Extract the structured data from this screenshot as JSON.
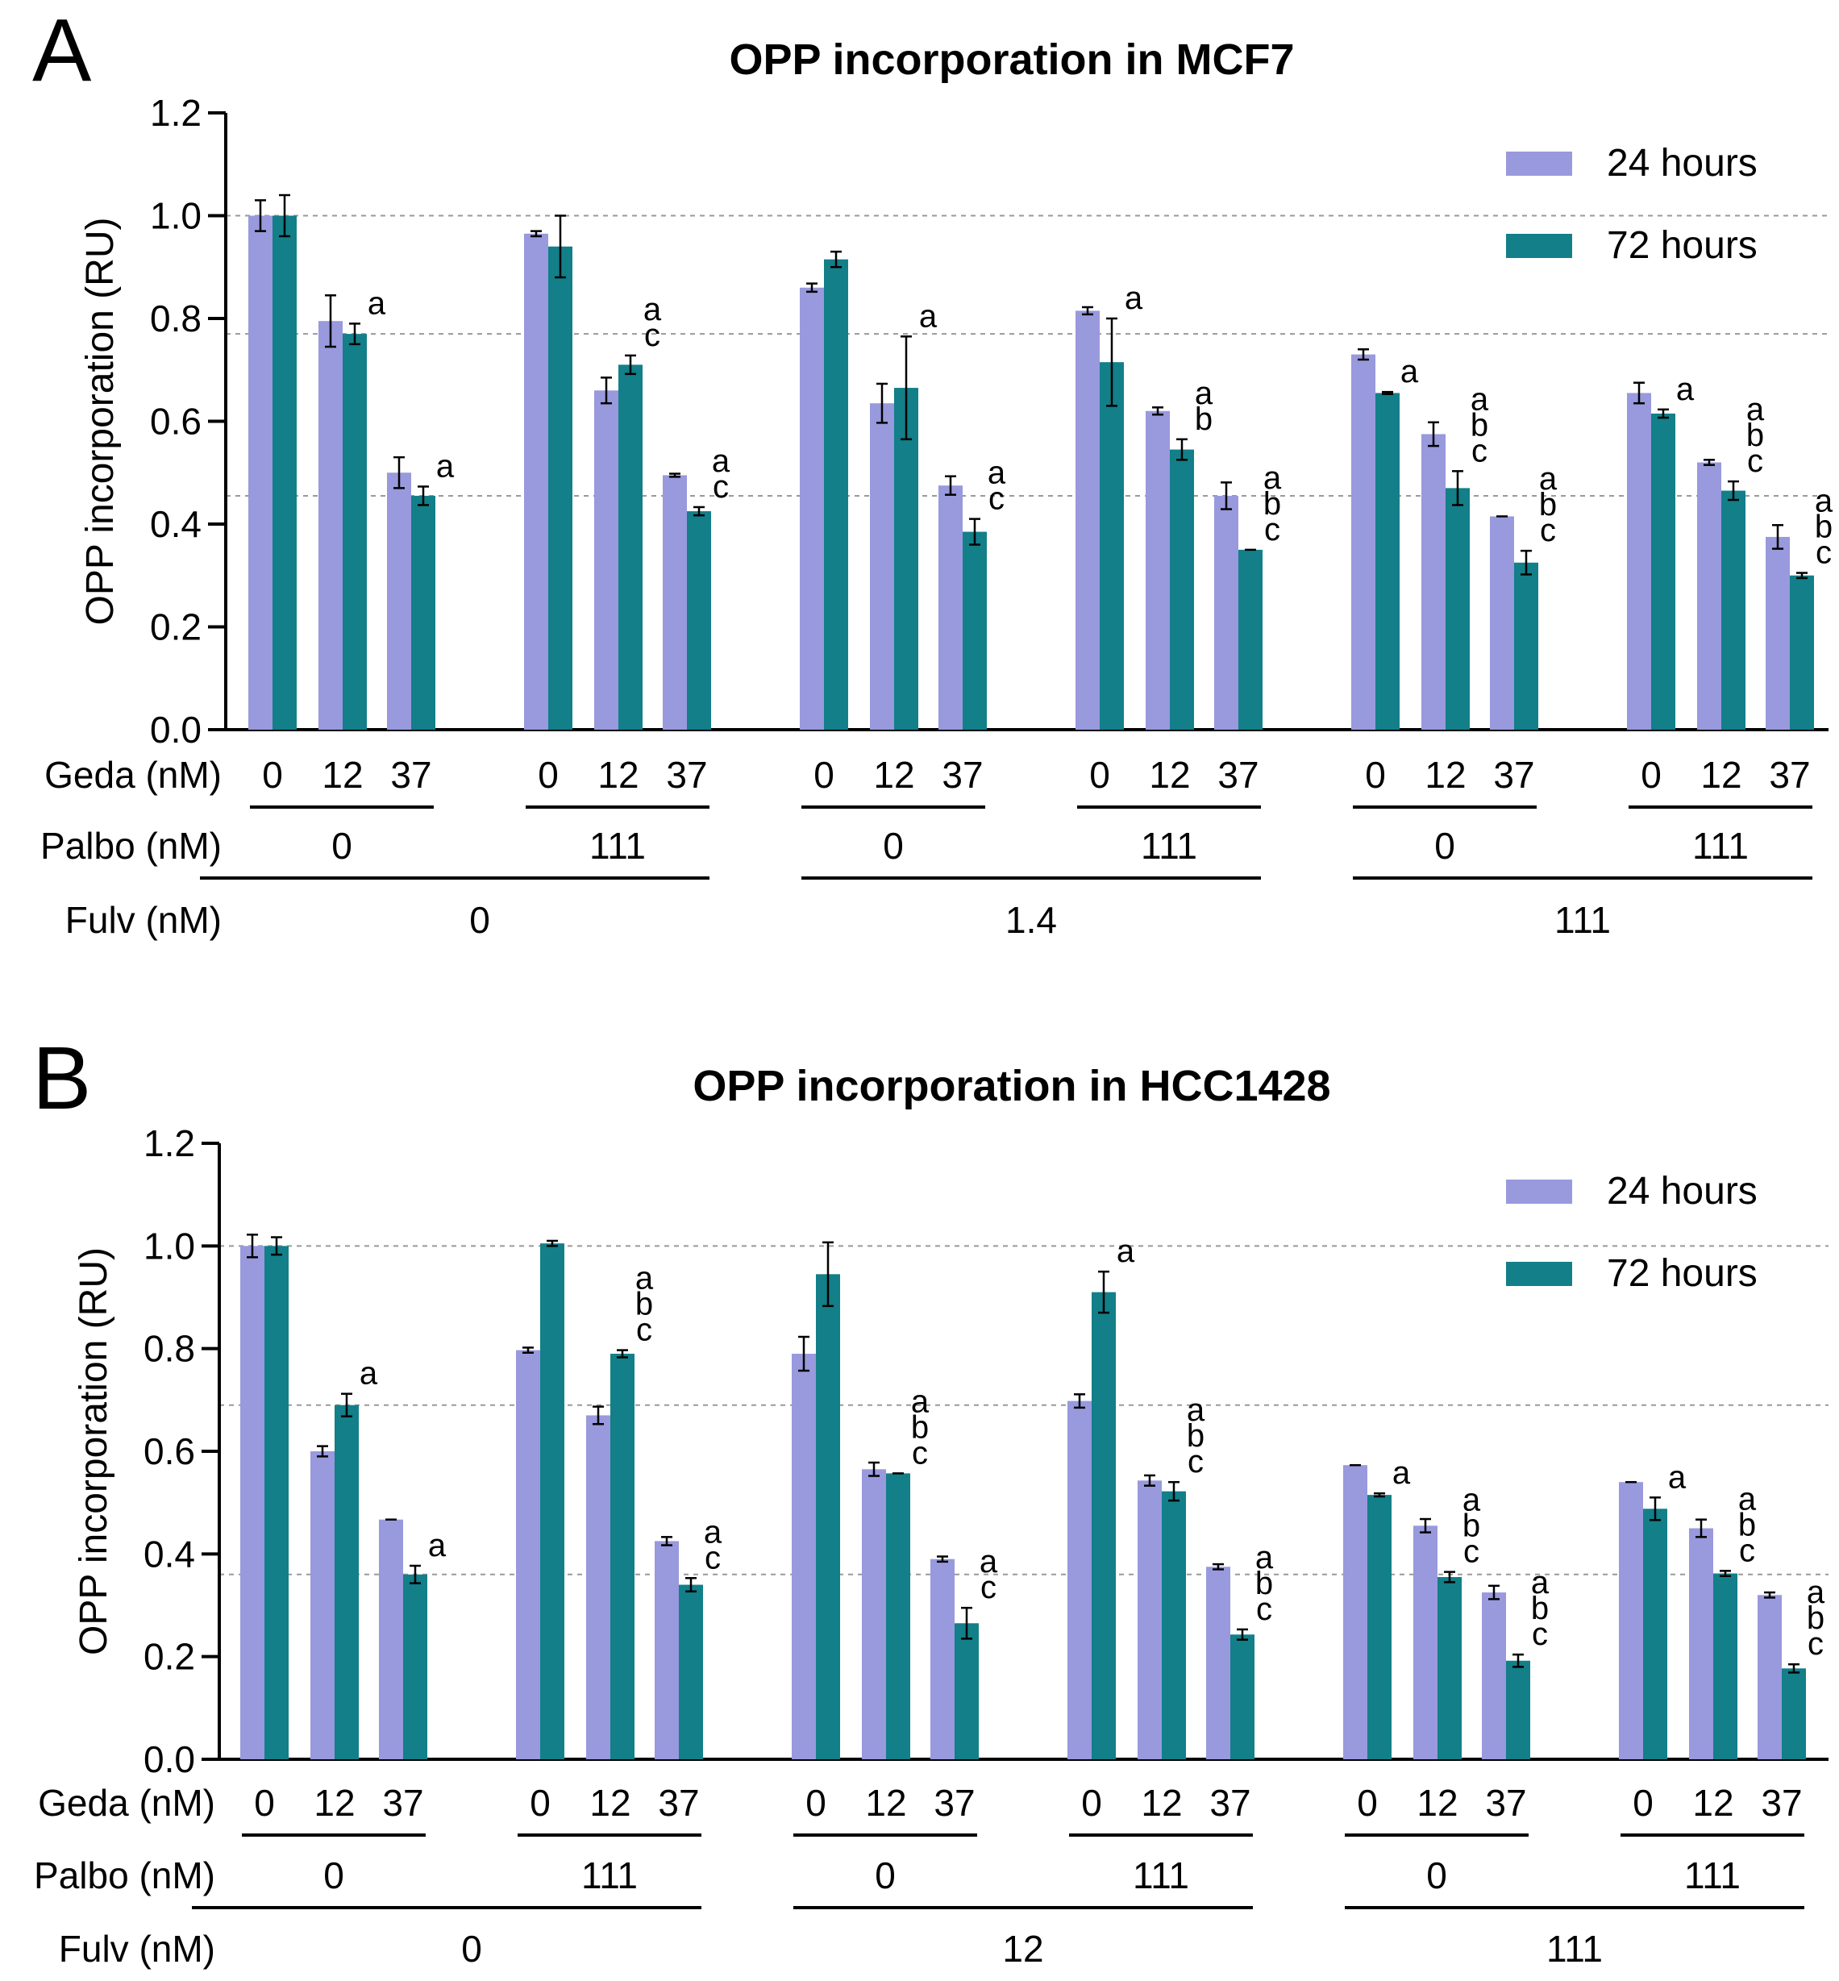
{
  "colors": {
    "h24": "#9999dd",
    "h72": "#127f89",
    "axis": "#000000",
    "grid": "#999999"
  },
  "chart_data": [
    {
      "type": "bar",
      "panel": "A",
      "title": "OPP incorporation in MCF7",
      "ylabel": "OPP incorporation (RU)",
      "ylim": [
        0,
        1.2
      ],
      "yticks": [
        "0.0",
        "0.2",
        "0.4",
        "0.6",
        "0.8",
        "1.0",
        "1.2"
      ],
      "ref_lines": [
        1.0,
        0.77,
        0.455
      ],
      "legend": [
        "24 hours",
        "72 hours"
      ],
      "legend_position": "top-right",
      "row_labels": {
        "geda": "Geda (nM)",
        "palbo": "Palbo (nM)",
        "fulv": "Fulv (nM)"
      },
      "geda_labels": [
        "0",
        "12",
        "37",
        "0",
        "12",
        "37",
        "0",
        "12",
        "37",
        "0",
        "12",
        "37",
        "0",
        "12",
        "37",
        "0",
        "12",
        "37"
      ],
      "palbo_labels": [
        "0",
        "111",
        "0",
        "111",
        "0",
        "111"
      ],
      "fulv_labels": [
        "0",
        "1.4",
        "111"
      ],
      "series": [
        {
          "name": "24 hours",
          "values": [
            1.0,
            0.795,
            0.5,
            0.965,
            0.66,
            0.495,
            0.86,
            0.635,
            0.475,
            0.815,
            0.62,
            0.455,
            0.73,
            0.575,
            0.415,
            0.655,
            0.52,
            0.375
          ],
          "errors": [
            0.03,
            0.05,
            0.03,
            0.005,
            0.025,
            0.003,
            0.008,
            0.038,
            0.018,
            0.007,
            0.007,
            0.026,
            0.01,
            0.023,
            0.0,
            0.02,
            0.005,
            0.023
          ]
        },
        {
          "name": "72 hours",
          "values": [
            1.0,
            0.77,
            0.455,
            0.94,
            0.71,
            0.425,
            0.915,
            0.665,
            0.385,
            0.715,
            0.545,
            0.35,
            0.655,
            0.47,
            0.325,
            0.615,
            0.465,
            0.3
          ],
          "errors": [
            0.04,
            0.02,
            0.018,
            0.06,
            0.018,
            0.008,
            0.015,
            0.1,
            0.025,
            0.085,
            0.02,
            0.0,
            0.002,
            0.033,
            0.023,
            0.008,
            0.018,
            0.005
          ]
        }
      ],
      "annotations": [
        "",
        "a",
        "a",
        "",
        "a c",
        "a c",
        "",
        "a",
        "a c",
        "a",
        "a b",
        "a b c",
        "a",
        "a b c",
        "a b c",
        "a",
        "a b c",
        "a b c"
      ]
    },
    {
      "type": "bar",
      "panel": "B",
      "title": "OPP incorporation in HCC1428",
      "ylabel": "OPP incorporation (RU)",
      "ylim": [
        0,
        1.2
      ],
      "yticks": [
        "0.0",
        "0.2",
        "0.4",
        "0.6",
        "0.8",
        "1.0",
        "1.2"
      ],
      "ref_lines": [
        1.0,
        0.69,
        0.36
      ],
      "legend": [
        "24 hours",
        "72 hours"
      ],
      "legend_position": "top-right",
      "row_labels": {
        "geda": "Geda (nM)",
        "palbo": "Palbo (nM)",
        "fulv": "Fulv (nM)"
      },
      "geda_labels": [
        "0",
        "12",
        "37",
        "0",
        "12",
        "37",
        "0",
        "12",
        "37",
        "0",
        "12",
        "37",
        "0",
        "12",
        "37",
        "0",
        "12",
        "37"
      ],
      "palbo_labels": [
        "0",
        "111",
        "0",
        "111",
        "0",
        "111"
      ],
      "fulv_labels": [
        "0",
        "12",
        "111"
      ],
      "series": [
        {
          "name": "24 hours",
          "values": [
            1.0,
            0.6,
            0.467,
            0.797,
            0.67,
            0.425,
            0.79,
            0.565,
            0.39,
            0.698,
            0.543,
            0.375,
            0.573,
            0.455,
            0.325,
            0.54,
            0.45,
            0.32
          ],
          "errors": [
            0.022,
            0.01,
            0.0,
            0.005,
            0.017,
            0.008,
            0.033,
            0.013,
            0.005,
            0.013,
            0.01,
            0.005,
            0.0,
            0.013,
            0.013,
            0.0,
            0.017,
            0.005
          ]
        },
        {
          "name": "72 hours",
          "values": [
            1.0,
            0.69,
            0.36,
            1.005,
            0.79,
            0.34,
            0.945,
            0.557,
            0.265,
            0.91,
            0.522,
            0.243,
            0.515,
            0.355,
            0.192,
            0.488,
            0.362,
            0.177
          ],
          "errors": [
            0.017,
            0.022,
            0.017,
            0.005,
            0.007,
            0.013,
            0.062,
            0.0,
            0.03,
            0.04,
            0.018,
            0.01,
            0.003,
            0.01,
            0.012,
            0.022,
            0.005,
            0.008
          ]
        }
      ],
      "annotations": [
        "",
        "a",
        "a",
        "",
        "a b c",
        "a c",
        "",
        "a b c",
        "a c",
        "a",
        "a b c",
        "a b c",
        "a",
        "a b c",
        "a b c",
        "a",
        "a b c",
        "a b c"
      ]
    }
  ]
}
